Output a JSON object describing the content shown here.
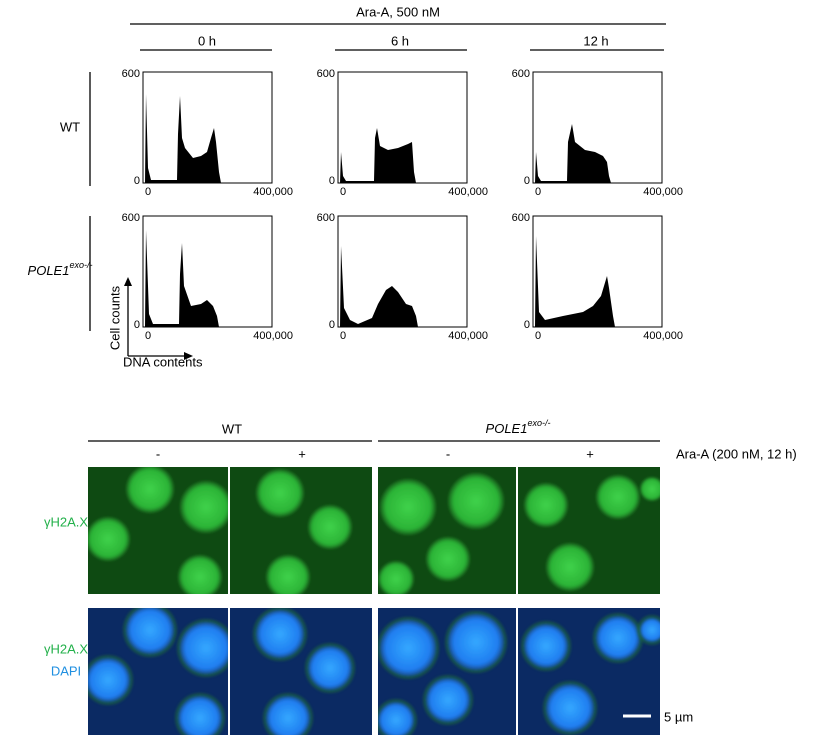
{
  "top": {
    "treatment": "Ara-A, 500 nM",
    "timepoints": [
      "0 h",
      "6 h",
      "12 h"
    ],
    "rows": [
      "WT",
      {
        "base": "POLE1",
        "sup": "exo-/-"
      }
    ],
    "axis": {
      "ymax": "600",
      "ymin": "0",
      "xmin": "0",
      "xmax": "400,000",
      "ylabel": "Cell counts",
      "xlabel": "DNA contents"
    }
  },
  "bottom": {
    "groups": [
      "WT",
      {
        "base": "POLE1",
        "sup": "exo-/-"
      }
    ],
    "conditions": [
      "-",
      "+",
      "-",
      "+"
    ],
    "treatment": "Ara-A (200 nM, 12 h)",
    "channels": {
      "gamma": "γH2A.X",
      "dapi": "DAPI"
    },
    "scale_bar": "5 µm"
  }
}
